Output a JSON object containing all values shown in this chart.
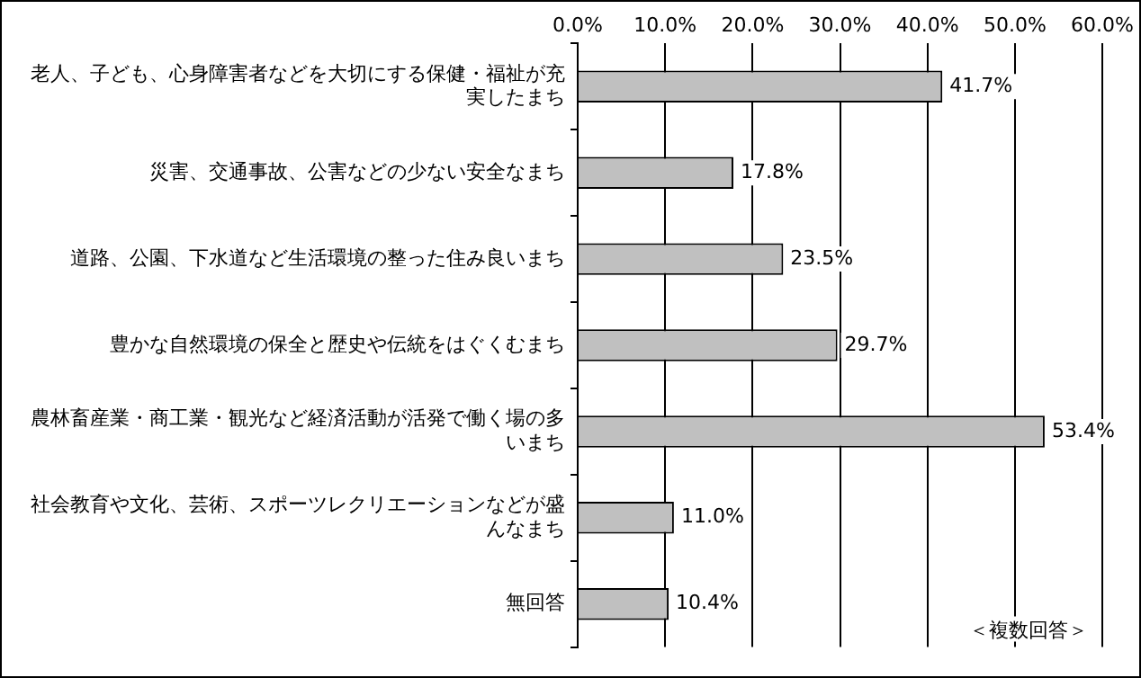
{
  "chart_data": {
    "type": "bar",
    "orientation": "horizontal",
    "categories": [
      "老人、子ども、心身障害者などを大切にする保健・福祉が充実したまち",
      "災害、交通事故、公害などの少ない安全なまち",
      "道路、公園、下水道など生活環境の整った住み良いまち",
      "豊かな自然環境の保全と歴史や伝統をはぐくむまち",
      "農林畜産業・商工業・観光など経済活動が活発で働く場の多いまち",
      "社会教育や文化、芸術、スポーツレクリエーションなどが盛んなまち",
      "無回答"
    ],
    "values": [
      41.7,
      17.8,
      23.5,
      29.7,
      53.4,
      11.0,
      10.4
    ],
    "value_labels": [
      "41.7%",
      "17.8%",
      "23.5%",
      "29.7%",
      "53.4%",
      "11.0%",
      "10.4%"
    ],
    "color": "#c0c0c0",
    "xlim": [
      0,
      60
    ],
    "xticks": [
      {
        "value": 0,
        "label": "0.0%"
      },
      {
        "value": 10,
        "label": "10.0%"
      },
      {
        "value": 20,
        "label": "20.0%"
      },
      {
        "value": 30,
        "label": "30.0%"
      },
      {
        "value": 40,
        "label": "40.0%"
      },
      {
        "value": 50,
        "label": "50.0%"
      },
      {
        "value": 60,
        "label": "60.0%"
      }
    ],
    "grid": "x",
    "legend": false,
    "annotations": [
      "＜複数回答＞"
    ]
  }
}
